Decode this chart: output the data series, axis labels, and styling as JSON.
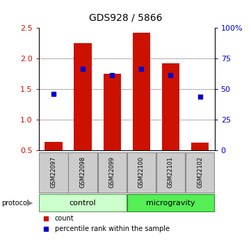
{
  "title": "GDS928 / 5866",
  "samples": [
    "GSM22097",
    "GSM22098",
    "GSM22099",
    "GSM22100",
    "GSM22101",
    "GSM22102"
  ],
  "bar_heights": [
    0.63,
    2.25,
    1.75,
    2.42,
    1.92,
    0.62
  ],
  "bar_bottom": 0.5,
  "blue_dot_y": [
    1.42,
    1.82,
    1.72,
    1.83,
    1.72,
    1.37
  ],
  "bar_color": "#cc1100",
  "blue_color": "#0000cc",
  "ylim_left": [
    0.5,
    2.5
  ],
  "ylim_right": [
    0,
    100
  ],
  "yticks_left": [
    0.5,
    1.0,
    1.5,
    2.0,
    2.5
  ],
  "yticks_right": [
    0,
    25,
    50,
    75,
    100
  ],
  "ytick_labels_right": [
    "0",
    "25",
    "50",
    "75",
    "100%"
  ],
  "protocol_label": "protocol",
  "legend_count": "count",
  "legend_pct": "percentile rank within the sample",
  "bar_width": 0.6,
  "label_area_color": "#cccccc",
  "control_color": "#ccffcc",
  "microgravity_color": "#55ee55",
  "title_fontsize": 10
}
